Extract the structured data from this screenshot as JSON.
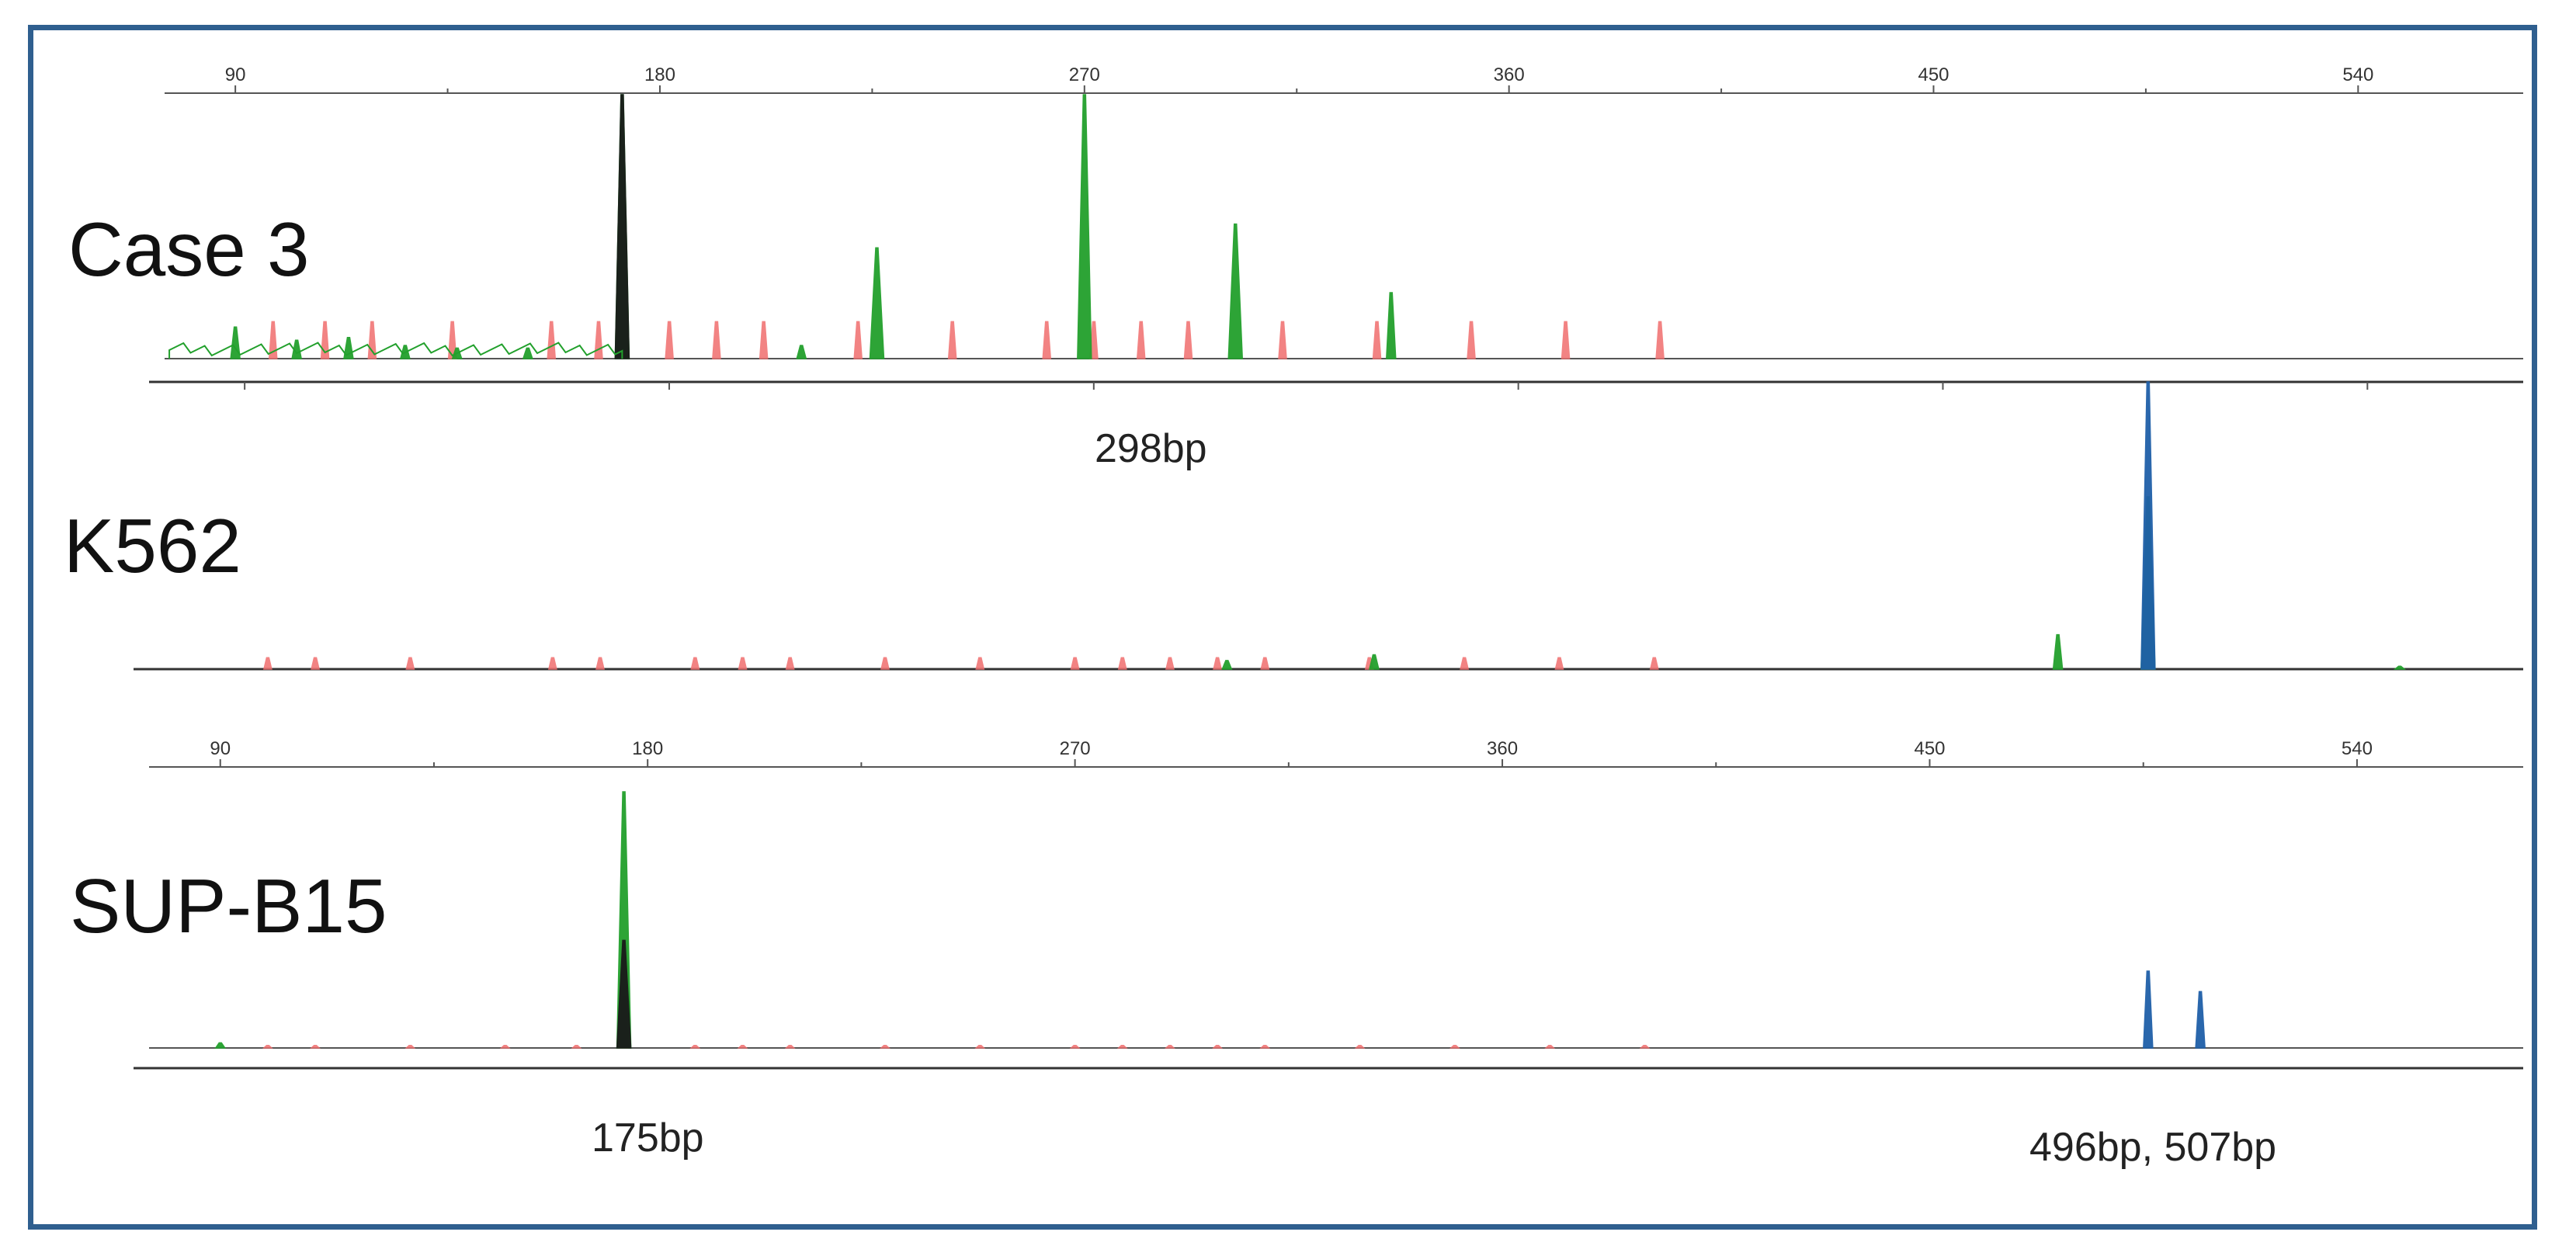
{
  "colors": {
    "frame": "#2f5f8f",
    "size_standard": "#f06e6e",
    "green_channel": "#22a02c",
    "blue_channel": "#1f5fa8",
    "black_channel": "#1a1a1a",
    "axis": "#555555"
  },
  "labels": {
    "case3": "Case 3",
    "k562": "K562",
    "supb15": "SUP-B15",
    "bp298": "298bp",
    "bp175": "175bp",
    "bp496_507": "496bp,  507bp"
  },
  "chart_data": [
    {
      "type": "line",
      "name": "Case 3",
      "x_unit": "bp",
      "xlim": [
        75,
        575
      ],
      "ylim": [
        0,
        1
      ],
      "ticks": [
        90,
        180,
        270,
        360,
        450,
        540
      ],
      "tick_labels": [
        "90",
        "180",
        "270",
        "360",
        "450",
        "540"
      ],
      "series": [
        {
          "color": "green",
          "peaks": [
            [
              90,
              0.12
            ],
            [
              103,
              0.07
            ],
            [
              114,
              0.08
            ],
            [
              126,
              0.05
            ],
            [
              137,
              0.04
            ],
            [
              152,
              0.04
            ],
            [
              172,
              1.0
            ],
            [
              210,
              0.05
            ],
            [
              226,
              0.42
            ],
            [
              270,
              1.0
            ],
            [
              302,
              0.51
            ],
            [
              335,
              0.25
            ]
          ]
        },
        {
          "color": "black",
          "peaks": [
            [
              172,
              1.0
            ]
          ]
        },
        {
          "color": "size_standard",
          "peaks": [
            [
              98,
              0.14
            ],
            [
              109,
              0.14
            ],
            [
              119,
              0.14
            ],
            [
              136,
              0.14
            ],
            [
              157,
              0.14
            ],
            [
              167,
              0.14
            ],
            [
              182,
              0.14
            ],
            [
              192,
              0.14
            ],
            [
              202,
              0.14
            ],
            [
              222,
              0.14
            ],
            [
              242,
              0.14
            ],
            [
              262,
              0.14
            ],
            [
              272,
              0.14
            ],
            [
              282,
              0.14
            ],
            [
              292,
              0.14
            ],
            [
              312,
              0.14
            ],
            [
              332,
              0.14
            ],
            [
              352,
              0.14
            ],
            [
              372,
              0.14
            ],
            [
              392,
              0.14
            ]
          ]
        }
      ]
    },
    {
      "type": "line",
      "name": "K562",
      "x_unit": "bp",
      "xlim": [
        75,
        575
      ],
      "ylim": [
        0,
        1
      ],
      "series": [
        {
          "color": "blue",
          "peaks": [
            [
              496,
              1.0
            ]
          ]
        },
        {
          "color": "green",
          "peaks": [
            [
              302,
              0.03
            ],
            [
              333,
              0.05
            ],
            [
              477,
              0.12
            ],
            [
              496,
              0.6
            ],
            [
              549,
              0.01
            ]
          ]
        },
        {
          "color": "size_standard",
          "peaks": [
            [
              100,
              0.04
            ],
            [
              110,
              0.04
            ],
            [
              130,
              0.04
            ],
            [
              160,
              0.04
            ],
            [
              170,
              0.04
            ],
            [
              190,
              0.04
            ],
            [
              200,
              0.04
            ],
            [
              210,
              0.04
            ],
            [
              230,
              0.04
            ],
            [
              250,
              0.04
            ],
            [
              270,
              0.04
            ],
            [
              280,
              0.04
            ],
            [
              290,
              0.04
            ],
            [
              300,
              0.04
            ],
            [
              310,
              0.04
            ],
            [
              332,
              0.04
            ],
            [
              352,
              0.04
            ],
            [
              372,
              0.04
            ],
            [
              392,
              0.04
            ]
          ]
        }
      ]
    },
    {
      "type": "line",
      "name": "SUP-B15",
      "x_unit": "bp",
      "xlim": [
        75,
        575
      ],
      "ylim": [
        0,
        1
      ],
      "ticks": [
        90,
        180,
        270,
        360,
        450,
        540
      ],
      "tick_labels": [
        "90",
        "180",
        "270",
        "360",
        "450",
        "540"
      ],
      "series": [
        {
          "color": "green",
          "peaks": [
            [
              175,
              1.0
            ],
            [
              90,
              0.02
            ]
          ]
        },
        {
          "color": "black",
          "peaks": [
            [
              175,
              0.42
            ]
          ]
        },
        {
          "color": "blue",
          "peaks": [
            [
              496,
              0.3
            ],
            [
              507,
              0.22
            ]
          ]
        },
        {
          "color": "size_standard",
          "peaks": [
            [
              100,
              0.01
            ],
            [
              110,
              0.01
            ],
            [
              130,
              0.01
            ],
            [
              150,
              0.01
            ],
            [
              165,
              0.01
            ],
            [
              175,
              0.2
            ],
            [
              190,
              0.01
            ],
            [
              200,
              0.01
            ],
            [
              210,
              0.01
            ],
            [
              230,
              0.01
            ],
            [
              250,
              0.01
            ],
            [
              270,
              0.01
            ],
            [
              280,
              0.01
            ],
            [
              290,
              0.01
            ],
            [
              300,
              0.01
            ],
            [
              310,
              0.01
            ],
            [
              330,
              0.01
            ],
            [
              350,
              0.01
            ],
            [
              370,
              0.01
            ],
            [
              390,
              0.01
            ]
          ]
        }
      ]
    }
  ]
}
